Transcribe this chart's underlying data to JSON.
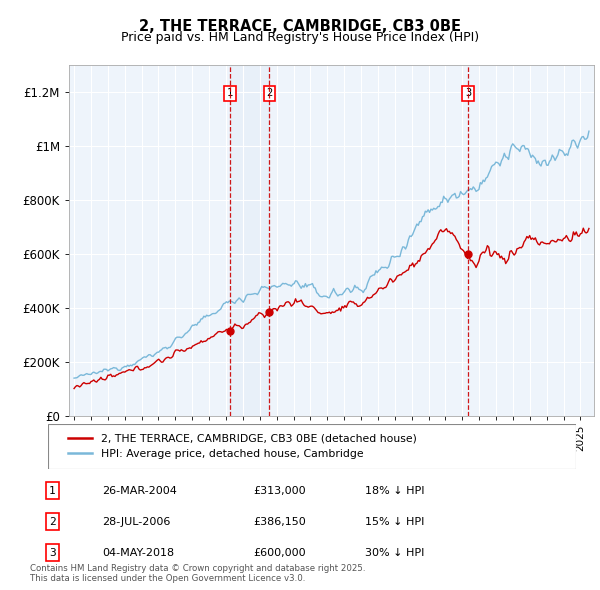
{
  "title": "2, THE TERRACE, CAMBRIDGE, CB3 0BE",
  "subtitle": "Price paid vs. HM Land Registry's House Price Index (HPI)",
  "ylabel_ticks": [
    "£0",
    "£200K",
    "£400K",
    "£600K",
    "£800K",
    "£1M",
    "£1.2M"
  ],
  "ylim": [
    0,
    1300000
  ],
  "xlim_start": 1994.7,
  "xlim_end": 2025.8,
  "sale_dates": [
    2004.23,
    2006.57,
    2018.34
  ],
  "sale_prices": [
    313000,
    386150,
    600000
  ],
  "sale_labels": [
    "1",
    "2",
    "3"
  ],
  "sale_date_strs": [
    "26-MAR-2004",
    "28-JUL-2006",
    "04-MAY-2018"
  ],
  "sale_price_strs": [
    "£313,000",
    "£386,150",
    "£600,000"
  ],
  "sale_hpi_strs": [
    "18% ↓ HPI",
    "15% ↓ HPI",
    "30% ↓ HPI"
  ],
  "hpi_color": "#7ab8d9",
  "price_color": "#cc0000",
  "vline_color": "#cc0000",
  "background_color": "#eef4fb",
  "grid_color": "#cccccc",
  "footer_text": "Contains HM Land Registry data © Crown copyright and database right 2025.\nThis data is licensed under the Open Government Licence v3.0."
}
